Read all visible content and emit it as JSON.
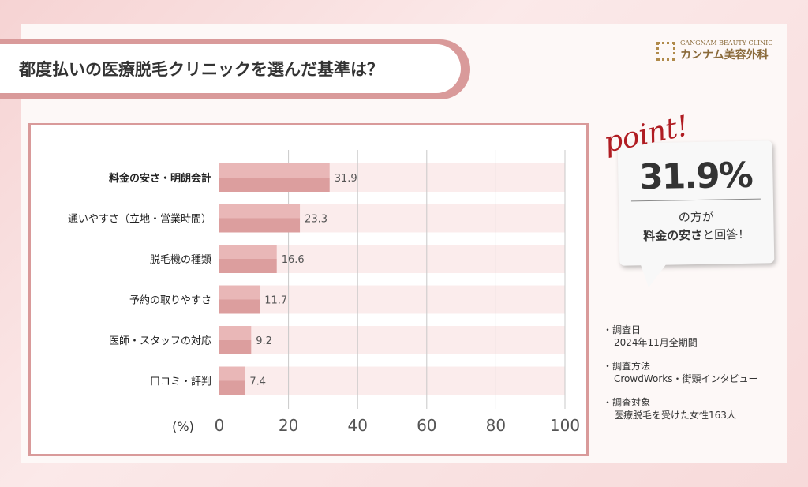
{
  "title": "都度払いの医療脱毛クリニックを選んだ基準は？",
  "logo": {
    "en": "GANGNAM BEAUTY CLINIC",
    "jp": "カンナム美容外科"
  },
  "point": {
    "label": "point!",
    "value": "31.9%",
    "line1": "の方が",
    "line2_bold": "料金の安さ",
    "line2_rest": "と回答！"
  },
  "notes": [
    {
      "heading": "調査日",
      "value": "2024年11月全期間"
    },
    {
      "heading": "調査方法",
      "value": "CrowdWorks・街頭インタビュー"
    },
    {
      "heading": "調査対象",
      "value": "医療脱毛を受けた女性163人"
    }
  ],
  "colors": {
    "bar_light": "#e9b7b7",
    "bar_dark": "#dc9e9e",
    "track": "#fbecec",
    "frame": "#d99a9a"
  },
  "chart_data": {
    "type": "bar",
    "orientation": "horizontal",
    "categories": [
      "料金の安さ・明朗会計",
      "通いやすさ（立地・営業時間）",
      "脱毛機の種類",
      "予約の取りやすさ",
      "医師・スタッフの対応",
      "口コミ・評判"
    ],
    "values": [
      31.9,
      23.3,
      16.6,
      11.7,
      9.2,
      7.4
    ],
    "xlabel": "(%)",
    "xlim": [
      0,
      100
    ],
    "xticks": [
      0,
      20,
      40,
      60,
      80,
      100
    ],
    "grid": true
  }
}
